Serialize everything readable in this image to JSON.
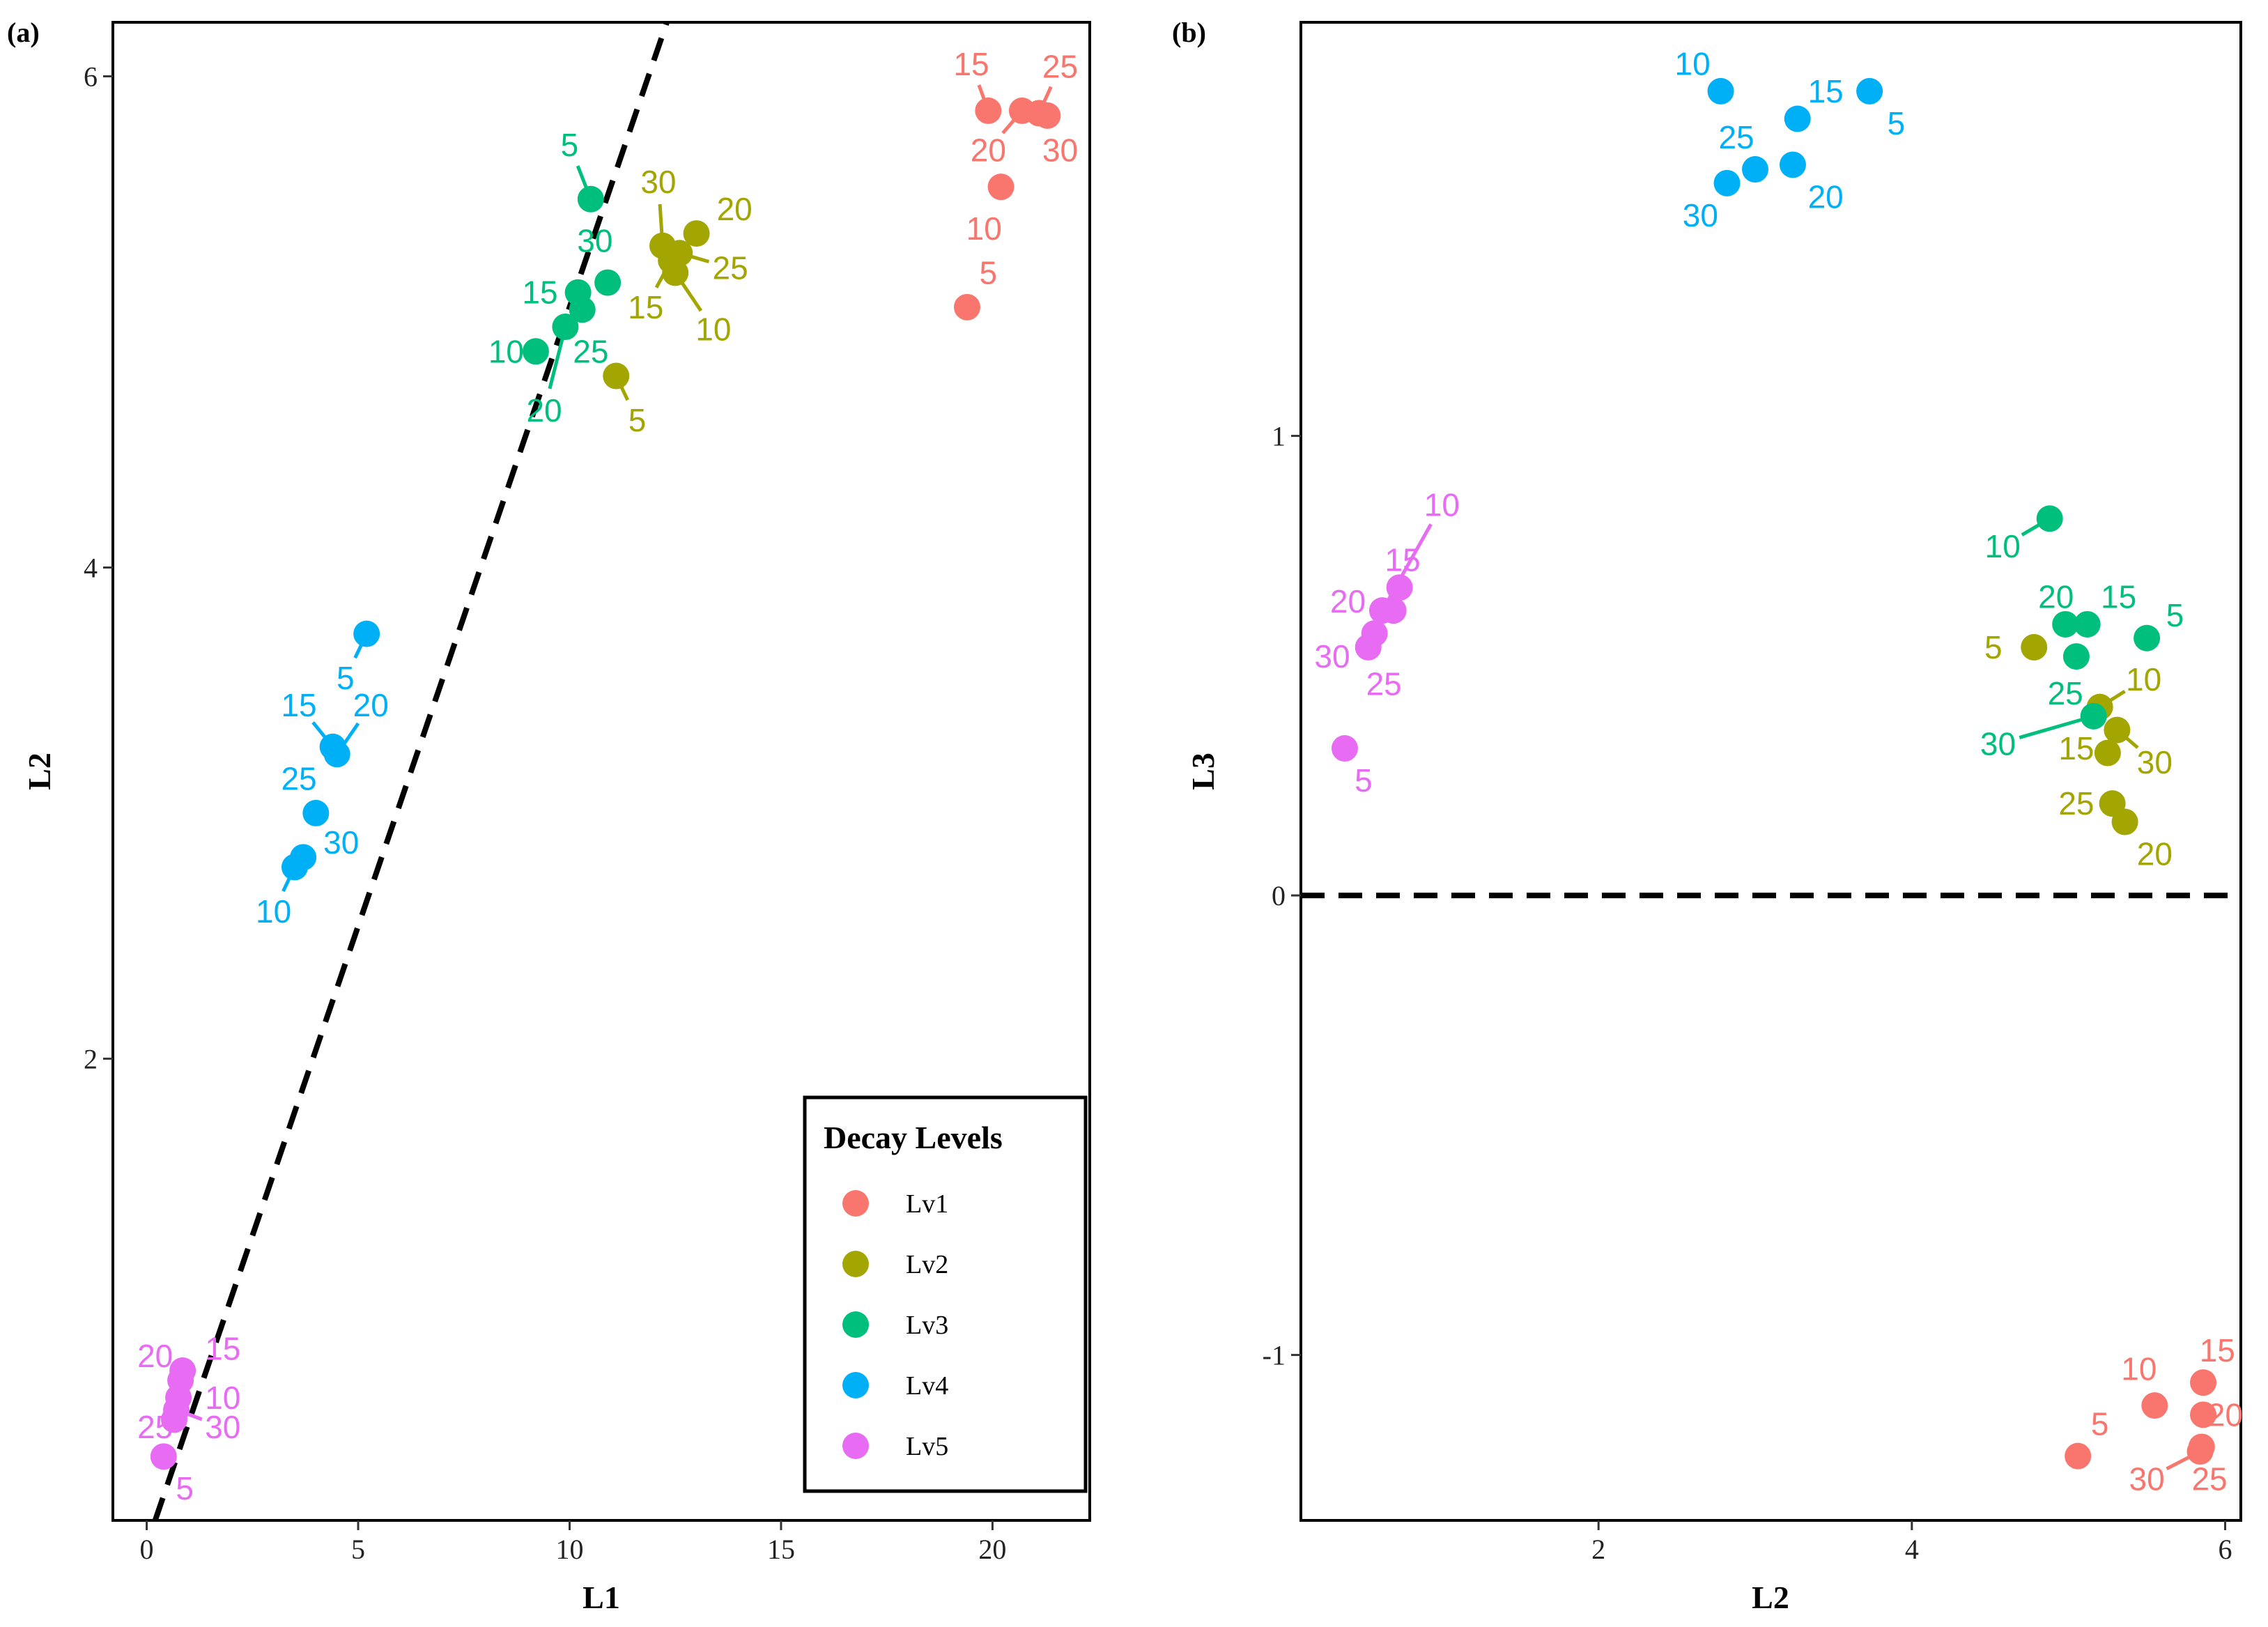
{
  "chart_data": [
    {
      "type": "scatter",
      "panel": "(a)",
      "xlabel": "L1",
      "ylabel": "L2",
      "xlim": [
        -0.8,
        22.3
      ],
      "ylim": [
        0.12,
        6.22
      ],
      "xticks": [
        0,
        5,
        10,
        15,
        20
      ],
      "yticks": [
        2,
        4,
        6
      ],
      "reference_line": {
        "style": "dashed",
        "x1": 0.2,
        "y1": 0.12,
        "x2": 12.3,
        "y2": 6.22
      },
      "series": [
        {
          "name": "Lv1",
          "color": "#F8766D",
          "points": [
            {
              "label": "5",
              "x": 19.4,
              "y": 5.06,
              "lx": 19.9,
              "ly": 5.2
            },
            {
              "label": "10",
              "x": 20.2,
              "y": 5.55,
              "lx": 19.8,
              "ly": 5.38
            },
            {
              "label": "15",
              "x": 19.9,
              "y": 5.86,
              "lx": 19.5,
              "ly": 6.05
            },
            {
              "label": "20",
              "x": 20.7,
              "y": 5.86,
              "lx": 19.9,
              "ly": 5.7
            },
            {
              "label": "25",
              "x": 21.1,
              "y": 5.85,
              "lx": 21.6,
              "ly": 6.04
            },
            {
              "label": "30",
              "x": 21.3,
              "y": 5.84,
              "lx": 21.6,
              "ly": 5.7
            }
          ]
        },
        {
          "name": "Lv2",
          "color": "#A3A500",
          "points": [
            {
              "label": "5",
              "x": 11.1,
              "y": 4.78,
              "lx": 11.6,
              "ly": 4.6
            },
            {
              "label": "10",
              "x": 12.5,
              "y": 5.2,
              "lx": 13.4,
              "ly": 4.97
            },
            {
              "label": "15",
              "x": 12.4,
              "y": 5.25,
              "lx": 11.8,
              "ly": 5.06
            },
            {
              "label": "20",
              "x": 13.0,
              "y": 5.36,
              "lx": 13.9,
              "ly": 5.46
            },
            {
              "label": "25",
              "x": 12.6,
              "y": 5.28,
              "lx": 13.8,
              "ly": 5.22
            },
            {
              "label": "30",
              "x": 12.2,
              "y": 5.31,
              "lx": 12.1,
              "ly": 5.57
            }
          ]
        },
        {
          "name": "Lv3",
          "color": "#00BF7D",
          "points": [
            {
              "label": "5",
              "x": 10.5,
              "y": 5.5,
              "lx": 10.0,
              "ly": 5.72
            },
            {
              "label": "10",
              "x": 9.2,
              "y": 4.88,
              "lx": 8.5,
              "ly": 4.88
            },
            {
              "label": "15",
              "x": 10.2,
              "y": 5.12,
              "lx": 9.3,
              "ly": 5.12
            },
            {
              "label": "20",
              "x": 9.9,
              "y": 4.98,
              "lx": 9.4,
              "ly": 4.64
            },
            {
              "label": "25",
              "x": 10.3,
              "y": 5.05,
              "lx": 10.5,
              "ly": 4.88
            },
            {
              "label": "30",
              "x": 10.9,
              "y": 5.16,
              "lx": 10.6,
              "ly": 5.33
            }
          ]
        },
        {
          "name": "Lv4",
          "color": "#00B0F6",
          "points": [
            {
              "label": "5",
              "x": 5.2,
              "y": 3.73,
              "lx": 4.7,
              "ly": 3.55
            },
            {
              "label": "10",
              "x": 3.5,
              "y": 2.78,
              "lx": 3.0,
              "ly": 2.6
            },
            {
              "label": "15",
              "x": 4.4,
              "y": 3.27,
              "lx": 3.6,
              "ly": 3.44
            },
            {
              "label": "20",
              "x": 4.5,
              "y": 3.24,
              "lx": 5.3,
              "ly": 3.44
            },
            {
              "label": "25",
              "x": 4.0,
              "y": 3.0,
              "lx": 3.6,
              "ly": 3.14
            },
            {
              "label": "30",
              "x": 3.7,
              "y": 2.82,
              "lx": 4.6,
              "ly": 2.88
            }
          ]
        },
        {
          "name": "Lv5",
          "color": "#E76BF3",
          "points": [
            {
              "label": "5",
              "x": 0.4,
              "y": 0.38,
              "lx": 0.9,
              "ly": 0.25
            },
            {
              "label": "10",
              "x": 0.75,
              "y": 0.62,
              "lx": 1.8,
              "ly": 0.62
            },
            {
              "label": "15",
              "x": 0.85,
              "y": 0.73,
              "lx": 1.8,
              "ly": 0.82
            },
            {
              "label": "20",
              "x": 0.8,
              "y": 0.69,
              "lx": 0.2,
              "ly": 0.79
            },
            {
              "label": "25",
              "x": 0.65,
              "y": 0.53,
              "lx": 0.2,
              "ly": 0.5
            },
            {
              "label": "30",
              "x": 0.7,
              "y": 0.57,
              "lx": 1.8,
              "ly": 0.5
            }
          ]
        }
      ],
      "legend": {
        "title": "Decay Levels",
        "position": "bottom-right",
        "entries": [
          "Lv1",
          "Lv2",
          "Lv3",
          "Lv4",
          "Lv5"
        ]
      }
    },
    {
      "type": "scatter",
      "panel": "(b)",
      "xlabel": "L2",
      "ylabel": "L3",
      "xlim": [
        0.1,
        6.1
      ],
      "ylim": [
        -1.36,
        1.9
      ],
      "xticks": [
        2,
        4,
        6
      ],
      "yticks": [
        -1,
        0,
        1
      ],
      "reference_line": {
        "style": "dashed",
        "y": 0
      },
      "series": [
        {
          "name": "Lv1",
          "color": "#F8766D",
          "points": [
            {
              "label": "5",
              "x": 5.06,
              "y": -1.22,
              "lx": 5.2,
              "ly": -1.15
            },
            {
              "label": "10",
              "x": 5.55,
              "y": -1.11,
              "lx": 5.45,
              "ly": -1.03
            },
            {
              "label": "15",
              "x": 5.86,
              "y": -1.06,
              "lx": 5.95,
              "ly": -0.99
            },
            {
              "label": "20",
              "x": 5.86,
              "y": -1.13,
              "lx": 6.0,
              "ly": -1.13
            },
            {
              "label": "25",
              "x": 5.85,
              "y": -1.2,
              "lx": 5.9,
              "ly": -1.27
            },
            {
              "label": "30",
              "x": 5.84,
              "y": -1.21,
              "lx": 5.5,
              "ly": -1.27
            }
          ]
        },
        {
          "name": "Lv2",
          "color": "#A3A500",
          "points": [
            {
              "label": "5",
              "x": 4.78,
              "y": 0.54,
              "lx": 4.52,
              "ly": 0.54
            },
            {
              "label": "10",
              "x": 5.2,
              "y": 0.41,
              "lx": 5.48,
              "ly": 0.47
            },
            {
              "label": "15",
              "x": 5.25,
              "y": 0.31,
              "lx": 5.05,
              "ly": 0.32
            },
            {
              "label": "20",
              "x": 5.36,
              "y": 0.16,
              "lx": 5.55,
              "ly": 0.09
            },
            {
              "label": "25",
              "x": 5.28,
              "y": 0.2,
              "lx": 5.05,
              "ly": 0.2
            },
            {
              "label": "30",
              "x": 5.31,
              "y": 0.36,
              "lx": 5.55,
              "ly": 0.29
            }
          ]
        },
        {
          "name": "Lv3",
          "color": "#00BF7D",
          "points": [
            {
              "label": "5",
              "x": 5.5,
              "y": 0.56,
              "lx": 5.68,
              "ly": 0.61
            },
            {
              "label": "10",
              "x": 4.88,
              "y": 0.82,
              "lx": 4.58,
              "ly": 0.76
            },
            {
              "label": "15",
              "x": 5.12,
              "y": 0.59,
              "lx": 5.32,
              "ly": 0.65
            },
            {
              "label": "20",
              "x": 4.98,
              "y": 0.59,
              "lx": 4.92,
              "ly": 0.65
            },
            {
              "label": "25",
              "x": 5.05,
              "y": 0.52,
              "lx": 4.98,
              "ly": 0.44
            },
            {
              "label": "30",
              "x": 5.16,
              "y": 0.39,
              "lx": 4.55,
              "ly": 0.33
            }
          ]
        },
        {
          "name": "Lv4",
          "color": "#00B0F6",
          "points": [
            {
              "label": "5",
              "x": 3.73,
              "y": 1.75,
              "lx": 3.9,
              "ly": 1.68
            },
            {
              "label": "10",
              "x": 2.78,
              "y": 1.75,
              "lx": 2.6,
              "ly": 1.81
            },
            {
              "label": "15",
              "x": 3.27,
              "y": 1.69,
              "lx": 3.45,
              "ly": 1.75
            },
            {
              "label": "20",
              "x": 3.24,
              "y": 1.59,
              "lx": 3.45,
              "ly": 1.52
            },
            {
              "label": "25",
              "x": 3.0,
              "y": 1.58,
              "lx": 2.88,
              "ly": 1.65
            },
            {
              "label": "30",
              "x": 2.82,
              "y": 1.55,
              "lx": 2.65,
              "ly": 1.48
            }
          ]
        },
        {
          "name": "Lv5",
          "color": "#E76BF3",
          "points": [
            {
              "label": "5",
              "x": 0.38,
              "y": 0.32,
              "lx": 0.5,
              "ly": 0.25
            },
            {
              "label": "10",
              "x": 0.62,
              "y": 0.62,
              "lx": 1.0,
              "ly": 0.85
            },
            {
              "label": "15",
              "x": 0.73,
              "y": 0.67,
              "lx": 0.75,
              "ly": 0.73
            },
            {
              "label": "20",
              "x": 0.69,
              "y": 0.62,
              "lx": 0.4,
              "ly": 0.64
            },
            {
              "label": "25",
              "x": 0.53,
              "y": 0.54,
              "lx": 0.63,
              "ly": 0.46
            },
            {
              "label": "30",
              "x": 0.57,
              "y": 0.57,
              "lx": 0.3,
              "ly": 0.52
            }
          ]
        }
      ]
    }
  ]
}
